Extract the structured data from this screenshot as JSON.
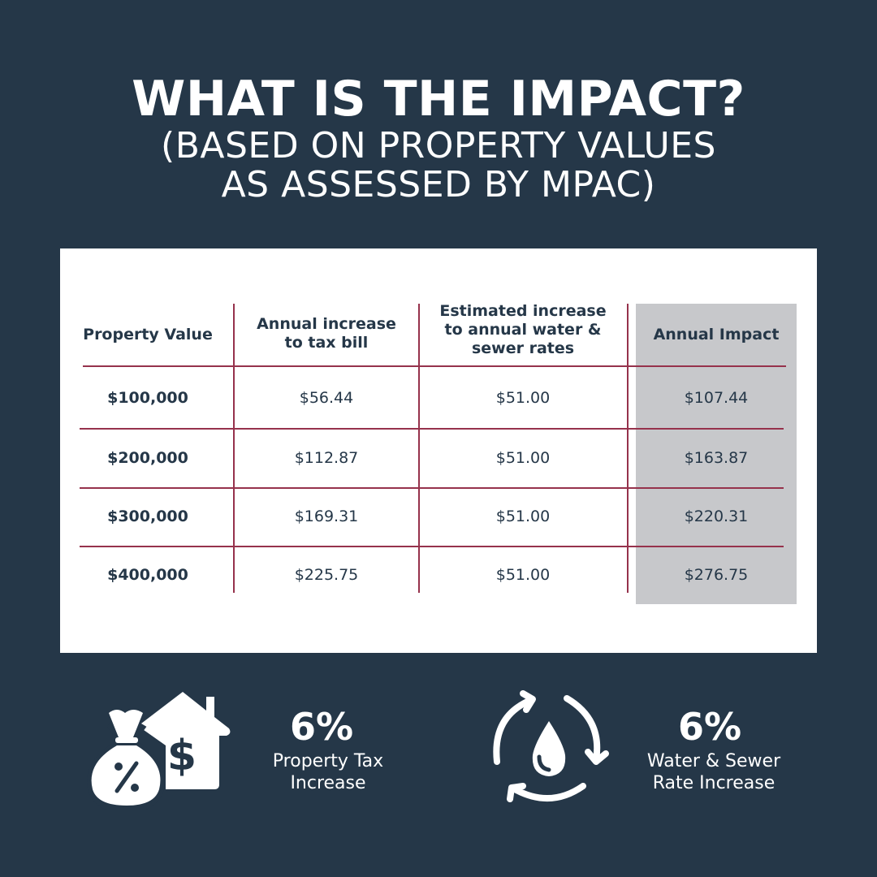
{
  "title": "WHAT IS THE IMPACT?",
  "subtitle_line1": "(BASED ON PROPERTY VALUES",
  "subtitle_line2": "AS ASSESSED BY MPAC)",
  "table": {
    "headers": [
      "Property Value",
      "Annual increase to tax bill",
      "Estimated increase to annual water & sewer rates",
      "Annual Impact"
    ],
    "rows": [
      [
        "$100,000",
        "$56.44",
        "$51.00",
        "$107.44"
      ],
      [
        "$200,000",
        "$112.87",
        "$51.00",
        "$163.87"
      ],
      [
        "$300,000",
        "$169.31",
        "$51.00",
        "$220.31"
      ],
      [
        "$400,000",
        "$225.75",
        "$51.00",
        "$276.75"
      ]
    ]
  },
  "stats": [
    {
      "percent": "6%",
      "label_line1": "Property Tax",
      "label_line2": "Increase",
      "icon": "money-bag-house-icon"
    },
    {
      "percent": "6%",
      "label_line1": "Water & Sewer",
      "label_line2": "Rate Increase",
      "icon": "water-cycle-icon"
    }
  ],
  "colors": {
    "background": "#253748",
    "card": "#ffffff",
    "grid_lines": "#96324c",
    "highlight_column": "#c7c8cb",
    "text_dark": "#253748"
  }
}
